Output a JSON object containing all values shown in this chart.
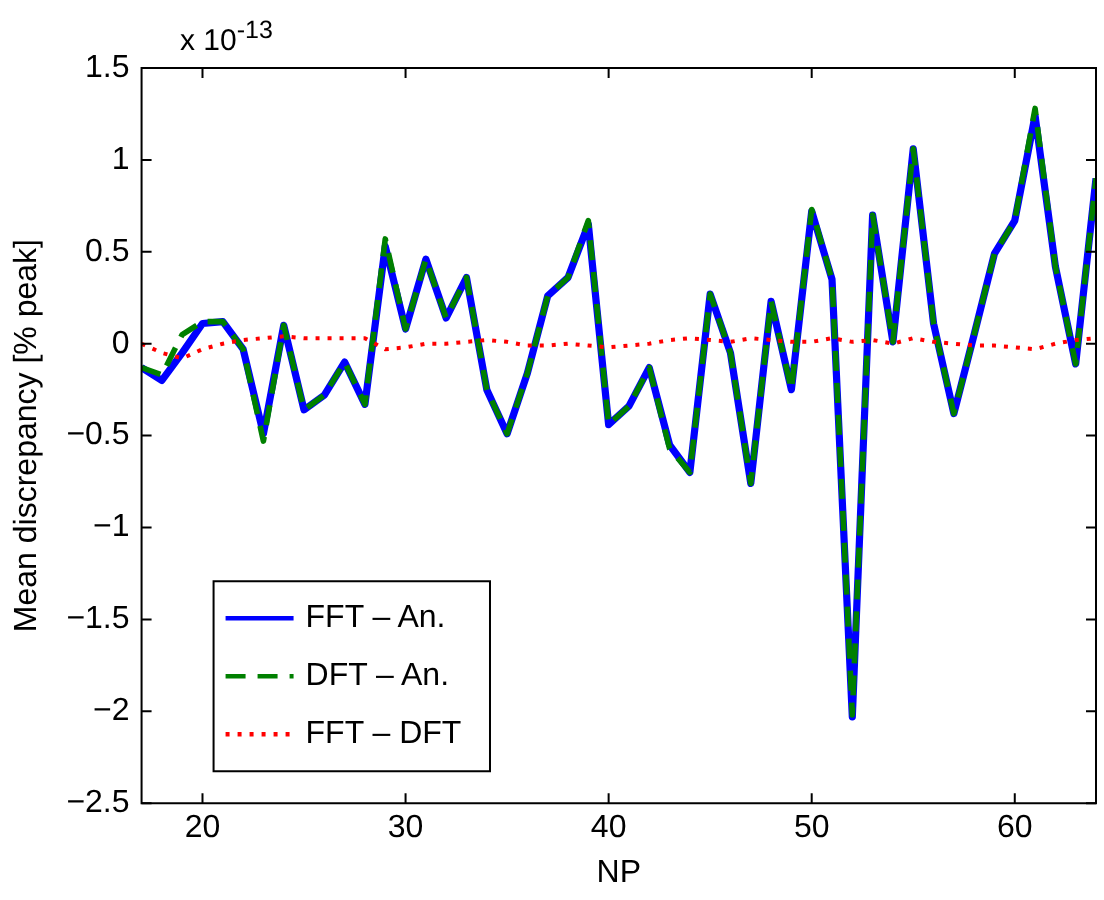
{
  "chart_data": {
    "type": "line",
    "xlabel": "NP",
    "ylabel": "Mean discrepancy [% peak]",
    "annotations": [
      "x 10$^{-13}$"
    ],
    "x": [
      17,
      18,
      19,
      20,
      21,
      22,
      23,
      24,
      25,
      26,
      27,
      28,
      29,
      30,
      31,
      32,
      33,
      34,
      35,
      36,
      37,
      38,
      39,
      40,
      41,
      42,
      43,
      44,
      45,
      46,
      47,
      48,
      49,
      50,
      51,
      52,
      53,
      54,
      55,
      56,
      57,
      58,
      59,
      60,
      61,
      62,
      63,
      64
    ],
    "xlim": [
      17,
      64
    ],
    "xticks": [
      20,
      30,
      40,
      50,
      60
    ],
    "ylim": [
      -2.5,
      1.5
    ],
    "yticks": [
      -2.5,
      -2,
      -1.5,
      -1,
      -0.5,
      0,
      0.5,
      1,
      1.5
    ],
    "grid": false,
    "legend": "bottom left",
    "marker": "none",
    "series": [
      {
        "name": "FFT – An.",
        "color": "#0000ff",
        "line_style": "solid",
        "values": [
          -0.13,
          -0.2,
          -0.05,
          0.11,
          0.12,
          -0.03,
          -0.49,
          0.1,
          -0.36,
          -0.28,
          -0.1,
          -0.33,
          0.53,
          0.08,
          0.46,
          0.14,
          0.36,
          -0.25,
          -0.49,
          -0.16,
          0.26,
          0.36,
          0.65,
          -0.44,
          -0.34,
          -0.13,
          -0.55,
          -0.7,
          0.27,
          -0.05,
          -0.76,
          0.23,
          -0.25,
          0.72,
          0.35,
          -2.03,
          0.7,
          0.01,
          1.06,
          0.11,
          -0.38,
          0.05,
          0.49,
          0.67,
          1.24,
          0.42,
          -0.11,
          0.9
        ]
      },
      {
        "name": "DFT – An.",
        "color": "#008000",
        "line_style": "dashed",
        "values": [
          -0.13,
          -0.17,
          0.05,
          0.12,
          0.12,
          -0.03,
          -0.53,
          0.1,
          -0.36,
          -0.28,
          -0.1,
          -0.33,
          0.57,
          0.08,
          0.46,
          0.14,
          0.36,
          -0.25,
          -0.49,
          -0.16,
          0.26,
          0.36,
          0.67,
          -0.44,
          -0.34,
          -0.13,
          -0.57,
          -0.7,
          0.27,
          -0.05,
          -0.76,
          0.23,
          -0.25,
          0.73,
          0.35,
          -2.02,
          0.7,
          0.01,
          1.06,
          0.11,
          -0.38,
          0.05,
          0.49,
          0.67,
          1.28,
          0.42,
          -0.11,
          0.9
        ]
      },
      {
        "name": "FFT – DFT",
        "color": "#ff0000",
        "line_style": "dotted",
        "values": [
          0,
          -0.05,
          -0.08,
          -0.03,
          0,
          0.02,
          0.03,
          0.04,
          0.03,
          0.03,
          0.03,
          0.03,
          -0.03,
          -0.02,
          0,
          0,
          0.01,
          0.02,
          0.01,
          -0.01,
          -0.01,
          0,
          -0.01,
          -0.02,
          -0.01,
          0,
          0.02,
          0.03,
          0.02,
          0.01,
          0.03,
          0.02,
          0.01,
          0.01,
          0.03,
          0.01,
          0.02,
          0,
          0.03,
          0.01,
          0,
          -0.01,
          -0.01,
          -0.02,
          -0.03,
          0,
          0.02,
          0.03
        ]
      }
    ]
  }
}
